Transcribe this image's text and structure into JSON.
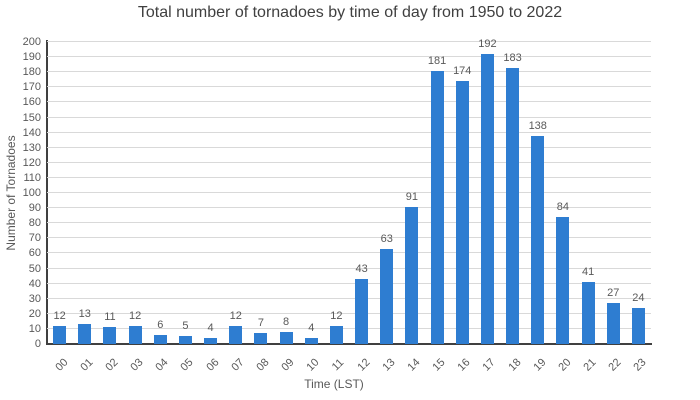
{
  "chart_data": {
    "type": "bar",
    "title": "Total number of tornadoes by time of day from 1950 to 2022",
    "xlabel": "Time (LST)",
    "ylabel": "Number of Tornadoes",
    "categories": [
      "00",
      "01",
      "02",
      "03",
      "04",
      "05",
      "06",
      "07",
      "08",
      "09",
      "10",
      "11",
      "12",
      "13",
      "14",
      "15",
      "16",
      "17",
      "18",
      "19",
      "20",
      "21",
      "22",
      "23"
    ],
    "values": [
      12,
      13,
      11,
      12,
      6,
      5,
      4,
      12,
      7,
      8,
      4,
      12,
      43,
      63,
      91,
      181,
      174,
      192,
      183,
      138,
      84,
      41,
      27,
      24
    ],
    "ylim": [
      0,
      200
    ],
    "ytick_step": 10,
    "grid": true,
    "legend": "none",
    "data_labels": true,
    "colors": {
      "bar": "#2e7dd1",
      "grid": "#d9d9d9",
      "axis": "#404040",
      "text_muted": "#595959",
      "title": "#404040"
    }
  }
}
